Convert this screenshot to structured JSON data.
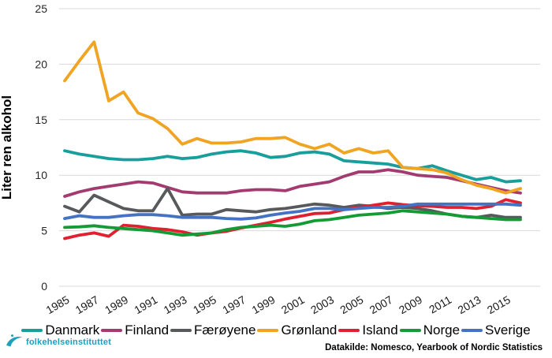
{
  "chart_data": {
    "type": "line",
    "title": "",
    "xlabel": "",
    "ylabel": "Liter ren alkohol",
    "ylim": [
      0,
      25
    ],
    "yticks": [
      0,
      5,
      10,
      15,
      20,
      25
    ],
    "grid": "horizontal",
    "legend_position": "bottom",
    "x": [
      1985,
      1986,
      1987,
      1988,
      1989,
      1990,
      1991,
      1992,
      1993,
      1994,
      1995,
      1996,
      1997,
      1998,
      1999,
      2000,
      2001,
      2002,
      2003,
      2004,
      2005,
      2006,
      2007,
      2008,
      2009,
      2010,
      2011,
      2012,
      2013,
      2014,
      2015,
      2016
    ],
    "xtick_labels": [
      "1985",
      "1987",
      "1989",
      "1991",
      "1993",
      "1995",
      "1997",
      "1999",
      "2001",
      "2003",
      "2005",
      "2007",
      "2009",
      "2011",
      "2013",
      "2015"
    ],
    "series": [
      {
        "name": "Danmark",
        "color": "#189E9B",
        "values": [
          12.2,
          11.9,
          11.7,
          11.5,
          11.4,
          11.4,
          11.5,
          11.7,
          11.5,
          11.6,
          11.9,
          12.1,
          12.2,
          12.0,
          11.6,
          11.7,
          12.0,
          12.1,
          11.9,
          11.3,
          11.2,
          11.1,
          11.0,
          10.7,
          10.6,
          10.85,
          10.4,
          10.0,
          9.6,
          9.8,
          9.4,
          9.5
        ]
      },
      {
        "name": "Finland",
        "color": "#A33B71",
        "values": [
          8.1,
          8.5,
          8.8,
          9.0,
          9.2,
          9.4,
          9.3,
          8.9,
          8.5,
          8.4,
          8.4,
          8.4,
          8.6,
          8.7,
          8.7,
          8.6,
          9.0,
          9.2,
          9.4,
          9.9,
          10.3,
          10.3,
          10.5,
          10.3,
          10.0,
          9.9,
          9.8,
          9.5,
          9.2,
          8.9,
          8.6,
          8.4
        ]
      },
      {
        "name": "Færøyene",
        "color": "#58595B",
        "values": [
          7.2,
          6.7,
          8.2,
          7.6,
          7.0,
          6.8,
          6.8,
          8.8,
          6.4,
          6.5,
          6.5,
          6.9,
          6.8,
          6.7,
          6.9,
          7.0,
          7.2,
          7.4,
          7.3,
          7.1,
          7.3,
          7.2,
          7.0,
          7.1,
          7.0,
          6.8,
          6.5,
          6.3,
          6.2,
          6.4,
          6.2,
          6.2
        ]
      },
      {
        "name": "Grønland",
        "color": "#F0A422",
        "values": [
          18.5,
          20.3,
          22.0,
          16.7,
          17.5,
          15.6,
          15.1,
          14.2,
          12.8,
          13.3,
          12.9,
          12.9,
          13.0,
          13.3,
          13.3,
          13.4,
          12.8,
          12.4,
          12.8,
          12.0,
          12.4,
          12.0,
          12.2,
          10.7,
          10.6,
          10.5,
          10.2,
          9.6,
          9.1,
          8.8,
          8.4,
          8.8
        ]
      },
      {
        "name": "Island",
        "color": "#E01F2F",
        "values": [
          4.3,
          4.6,
          4.8,
          4.5,
          5.5,
          5.4,
          5.2,
          5.1,
          4.9,
          4.6,
          4.8,
          4.95,
          5.25,
          5.5,
          5.75,
          6.05,
          6.3,
          6.55,
          6.6,
          6.9,
          7.1,
          7.3,
          7.5,
          7.35,
          7.25,
          7.2,
          7.1,
          7.1,
          7.0,
          7.2,
          7.8,
          7.5
        ]
      },
      {
        "name": "Norge",
        "color": "#149B35",
        "values": [
          5.3,
          5.35,
          5.45,
          5.3,
          5.2,
          5.1,
          5.0,
          4.8,
          4.6,
          4.7,
          4.8,
          5.1,
          5.3,
          5.4,
          5.5,
          5.4,
          5.6,
          5.9,
          6.0,
          6.2,
          6.4,
          6.5,
          6.6,
          6.8,
          6.7,
          6.6,
          6.5,
          6.3,
          6.2,
          6.1,
          6.0,
          6.0
        ]
      },
      {
        "name": "Sverige",
        "color": "#4472C4",
        "values": [
          6.1,
          6.35,
          6.2,
          6.2,
          6.35,
          6.45,
          6.45,
          6.35,
          6.2,
          6.2,
          6.2,
          6.1,
          6.05,
          6.15,
          6.4,
          6.6,
          6.75,
          7.0,
          7.0,
          6.9,
          7.0,
          7.1,
          7.1,
          7.2,
          7.4,
          7.4,
          7.4,
          7.4,
          7.4,
          7.4,
          7.4,
          7.3
        ]
      }
    ]
  },
  "footer": {
    "source": "Datakilde: Nomesco, Yearbook of Nordic Statistics",
    "logo_text": "folkehelseinstituttet",
    "logo_color": "#1D9FBE"
  }
}
